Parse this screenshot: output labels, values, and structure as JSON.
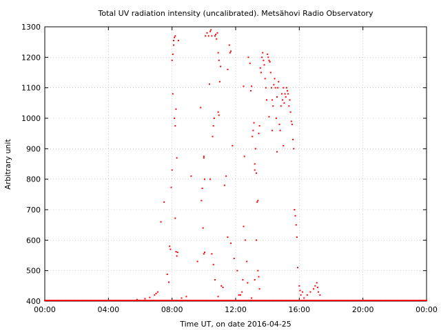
{
  "chart_data": {
    "type": "scatter",
    "title": "Total UV radiation intensity (uncalibrated). Metsähovi Radio Observatory",
    "xlabel": "Time UT, on date 2016-04-25",
    "ylabel": "Arbitrary unit",
    "xlim": [
      0,
      24
    ],
    "ylim": [
      400,
      1300
    ],
    "x_ticks": [
      0,
      4,
      8,
      12,
      16,
      20,
      24
    ],
    "x_tick_labels": [
      "00:00",
      "04:00",
      "08:00",
      "12:00",
      "16:00",
      "20:00",
      "00:00"
    ],
    "y_ticks": [
      400,
      500,
      600,
      700,
      800,
      900,
      1000,
      1100,
      1200,
      1300
    ],
    "y_tick_labels": [
      "400",
      "500",
      "600",
      "700",
      "800",
      "900",
      "1000",
      "1100",
      "1200",
      "1300"
    ],
    "x_unit": "hours UT",
    "grid": true,
    "point_color": "#ff0000",
    "baseline_value": 400,
    "series": [
      {
        "values": [
          [
            5.8,
            405
          ],
          [
            6.0,
            402
          ],
          [
            6.3,
            408
          ],
          [
            6.6,
            412
          ],
          [
            6.9,
            420
          ],
          [
            7.0,
            425
          ],
          [
            7.1,
            430
          ],
          [
            7.3,
            660
          ],
          [
            7.5,
            725
          ],
          [
            7.7,
            488
          ],
          [
            7.8,
            462
          ],
          [
            7.85,
            580
          ],
          [
            7.9,
            570
          ],
          [
            7.95,
            773
          ],
          [
            8.0,
            830
          ],
          [
            8.05,
            1080
          ],
          [
            8.0,
            1190
          ],
          [
            8.05,
            1210
          ],
          [
            8.1,
            1240
          ],
          [
            8.1,
            1255
          ],
          [
            8.15,
            1265
          ],
          [
            8.2,
            1270
          ],
          [
            8.15,
            1000
          ],
          [
            8.2,
            975
          ],
          [
            8.25,
            1030
          ],
          [
            8.2,
            672
          ],
          [
            8.3,
            870
          ],
          [
            8.25,
            562
          ],
          [
            8.3,
            548
          ],
          [
            8.4,
            1255
          ],
          [
            8.35,
            560
          ],
          [
            8.6,
            410
          ],
          [
            8.9,
            415
          ],
          [
            9.2,
            810
          ],
          [
            9.6,
            530
          ],
          [
            9.8,
            1035
          ],
          [
            9.85,
            730
          ],
          [
            9.9,
            770
          ],
          [
            9.95,
            640
          ],
          [
            10.0,
            870
          ],
          [
            10.0,
            875
          ],
          [
            10.05,
            800
          ],
          [
            10.0,
            555
          ],
          [
            10.05,
            560
          ],
          [
            10.1,
            1270
          ],
          [
            10.2,
            1280
          ],
          [
            10.3,
            1270
          ],
          [
            10.35,
            1112
          ],
          [
            10.4,
            1285
          ],
          [
            10.45,
            1290
          ],
          [
            10.5,
            1270
          ],
          [
            10.55,
            940
          ],
          [
            10.6,
            975
          ],
          [
            10.65,
            1000
          ],
          [
            10.7,
            1270
          ],
          [
            10.75,
            1275
          ],
          [
            10.8,
            1260
          ],
          [
            10.85,
            1280
          ],
          [
            10.9,
            1215
          ],
          [
            10.95,
            1190
          ],
          [
            10.9,
            1020
          ],
          [
            10.95,
            1010
          ],
          [
            11.0,
            1120
          ],
          [
            11.05,
            1170
          ],
          [
            10.4,
            800
          ],
          [
            10.5,
            555
          ],
          [
            10.6,
            520
          ],
          [
            10.7,
            470
          ],
          [
            10.9,
            415
          ],
          [
            11.1,
            450
          ],
          [
            11.2,
            445
          ],
          [
            11.3,
            780
          ],
          [
            11.4,
            810
          ],
          [
            11.5,
            1160
          ],
          [
            11.6,
            1240
          ],
          [
            11.7,
            1220
          ],
          [
            11.65,
            1215
          ],
          [
            11.8,
            910
          ],
          [
            11.5,
            610
          ],
          [
            11.7,
            590
          ],
          [
            11.9,
            540
          ],
          [
            12.1,
            500
          ],
          [
            12.3,
            420
          ],
          [
            12.45,
            470
          ],
          [
            12.5,
            1105
          ],
          [
            12.55,
            875
          ],
          [
            12.5,
            645
          ],
          [
            12.6,
            600
          ],
          [
            12.7,
            530
          ],
          [
            12.75,
            460
          ],
          [
            12.8,
            1200
          ],
          [
            12.9,
            1180
          ],
          [
            12.95,
            1090
          ],
          [
            13.0,
            1105
          ],
          [
            13.05,
            940
          ],
          [
            13.1,
            960
          ],
          [
            13.15,
            985
          ],
          [
            13.2,
            850
          ],
          [
            13.25,
            900
          ],
          [
            13.2,
            830
          ],
          [
            13.3,
            820
          ],
          [
            13.35,
            725
          ],
          [
            13.4,
            730
          ],
          [
            13.45,
            950
          ],
          [
            13.5,
            975
          ],
          [
            13.4,
            500
          ],
          [
            13.45,
            480
          ],
          [
            13.5,
            440
          ],
          [
            13.55,
            1165
          ],
          [
            13.6,
            1150
          ],
          [
            13.65,
            1200
          ],
          [
            13.7,
            1215
          ],
          [
            13.75,
            1190
          ],
          [
            13.8,
            1175
          ],
          [
            13.85,
            1130
          ],
          [
            13.9,
            1100
          ],
          [
            13.95,
            1060
          ],
          [
            14.0,
            1210
          ],
          [
            14.05,
            1200
          ],
          [
            14.1,
            1190
          ],
          [
            14.15,
            1185
          ],
          [
            14.2,
            1150
          ],
          [
            14.25,
            1100
          ],
          [
            14.3,
            1060
          ],
          [
            14.35,
            1040
          ],
          [
            14.4,
            1110
          ],
          [
            14.45,
            1130
          ],
          [
            14.5,
            1100
          ],
          [
            14.55,
            1000
          ],
          [
            14.6,
            1070
          ],
          [
            14.65,
            1100
          ],
          [
            14.7,
            1120
          ],
          [
            14.75,
            980
          ],
          [
            14.8,
            960
          ],
          [
            14.85,
            1040
          ],
          [
            14.9,
            1080
          ],
          [
            14.95,
            1060
          ],
          [
            15.0,
            1100
          ],
          [
            15.05,
            1050
          ],
          [
            15.1,
            1080
          ],
          [
            15.15,
            1070
          ],
          [
            15.2,
            1100
          ],
          [
            15.25,
            1090
          ],
          [
            15.3,
            1080
          ],
          [
            15.35,
            1040
          ],
          [
            15.4,
            1060
          ],
          [
            15.45,
            1020
          ],
          [
            15.5,
            990
          ],
          [
            15.55,
            980
          ],
          [
            15.6,
            930
          ],
          [
            15.65,
            900
          ],
          [
            15.7,
            700
          ],
          [
            15.75,
            680
          ],
          [
            15.8,
            650
          ],
          [
            15.85,
            610
          ],
          [
            15.9,
            510
          ],
          [
            16.0,
            450
          ],
          [
            16.05,
            435
          ],
          [
            16.1,
            420
          ],
          [
            16.2,
            430
          ],
          [
            16.3,
            410
          ],
          [
            16.5,
            420
          ],
          [
            16.7,
            430
          ],
          [
            16.9,
            440
          ],
          [
            17.0,
            450
          ],
          [
            17.1,
            460
          ],
          [
            17.15,
            445
          ],
          [
            17.2,
            430
          ],
          [
            17.3,
            420
          ],
          [
            14.1,
            1005
          ],
          [
            14.3,
            960
          ],
          [
            14.6,
            890
          ],
          [
            15.0,
            910
          ],
          [
            12.2,
            420
          ],
          [
            12.4,
            430
          ],
          [
            13.0,
            410
          ],
          [
            13.2,
            470
          ],
          [
            13.3,
            600
          ]
        ]
      }
    ]
  }
}
